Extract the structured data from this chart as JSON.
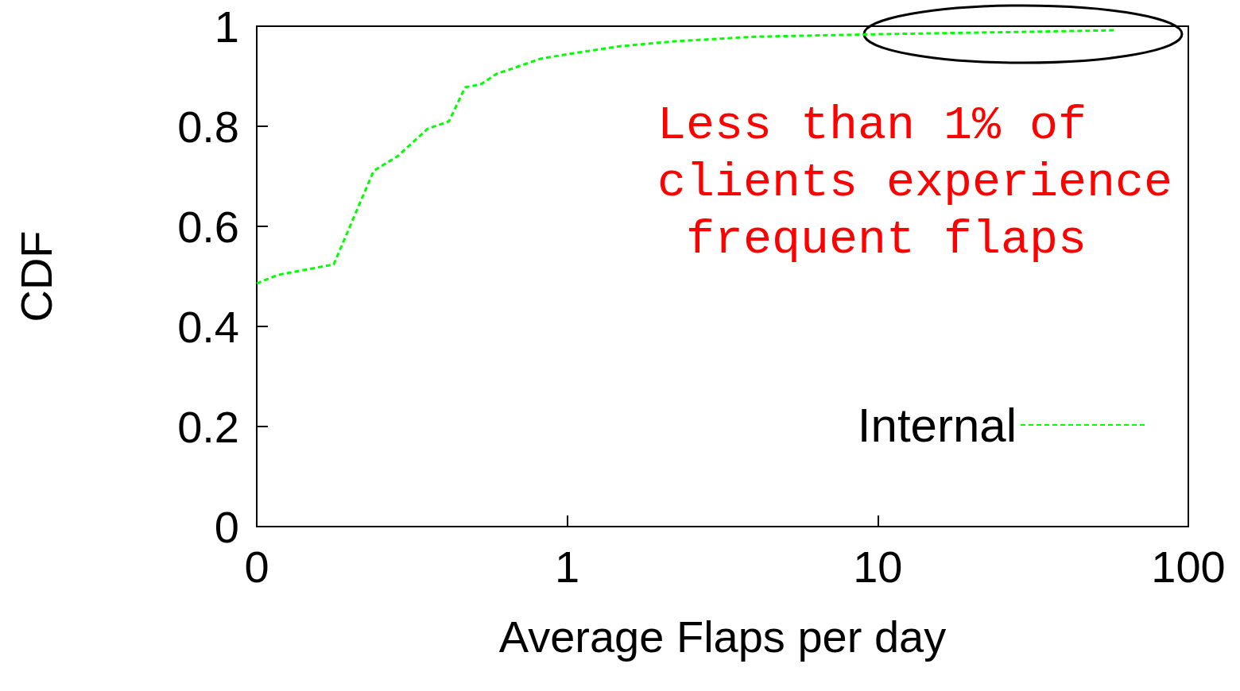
{
  "chart_data": {
    "type": "line",
    "xlabel": "Average Flaps per day",
    "ylabel": "CDF",
    "log": "x",
    "xlim": [
      0.1,
      100
    ],
    "xticks": [
      {
        "value": 0.1,
        "label": "0"
      },
      1,
      10,
      100
    ],
    "ylim": [
      0,
      1
    ],
    "yticks": [
      0,
      0.2,
      0.4,
      0.6,
      0.8,
      1
    ],
    "grid": false,
    "legend": "bottom right",
    "line_style": "dashed",
    "marker": "none",
    "annotations": [
      "Less than 1% of clients experience frequent flaps"
    ],
    "series": [
      {
        "name": "Internal",
        "color": "#00ff00",
        "x": [
          0.1,
          0.117,
          0.177,
          0.238,
          0.284,
          0.355,
          0.416,
          0.469,
          0.527,
          0.593,
          0.648,
          0.82,
          1.0,
          1.48,
          2.23,
          4.03,
          10,
          31.6,
          58.7
        ],
        "values": [
          0.486,
          0.503,
          0.524,
          0.711,
          0.74,
          0.795,
          0.81,
          0.878,
          0.884,
          0.905,
          0.913,
          0.935,
          0.944,
          0.96,
          0.97,
          0.979,
          0.984,
          0.989,
          0.992
        ]
      }
    ]
  }
}
